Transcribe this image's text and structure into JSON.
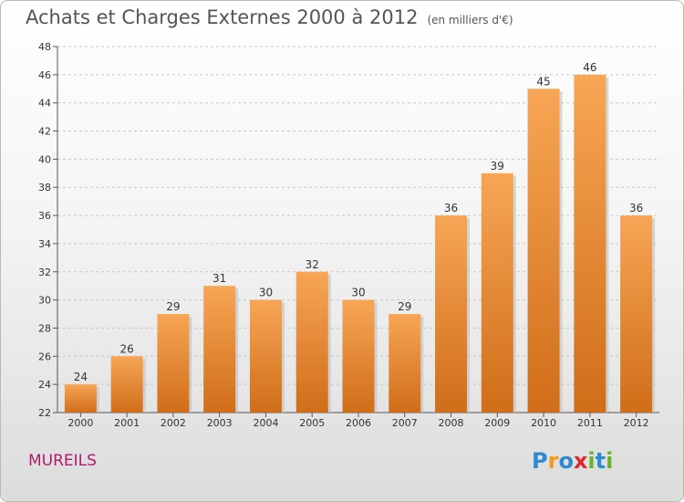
{
  "title": "Achats et Charges Externes 2000 à 2012",
  "unit_label": "(en milliers d'€)",
  "commune": "MUREILS",
  "logo": {
    "letters": [
      "P",
      "r",
      "o",
      "x",
      "i",
      "t",
      "i"
    ],
    "colors": [
      "#2e8bd0",
      "#f29a1a",
      "#2e8bd0",
      "#e0262d",
      "#6ab12f",
      "#2e8bd0",
      "#6ab12f"
    ]
  },
  "colors": {
    "bar_top": "#f7a655",
    "bar_bottom": "#d06d19",
    "grid": "#c8c8c8",
    "title": "#555555",
    "commune": "#b01a6c"
  },
  "chart_data": {
    "type": "bar",
    "categories": [
      "2000",
      "2001",
      "2002",
      "2003",
      "2004",
      "2005",
      "2006",
      "2007",
      "2008",
      "2009",
      "2010",
      "2011",
      "2012"
    ],
    "values": [
      24,
      26,
      29,
      31,
      30,
      32,
      30,
      29,
      36,
      39,
      45,
      46,
      36
    ],
    "ylim": [
      22,
      48
    ],
    "yticks": [
      22,
      24,
      26,
      28,
      30,
      32,
      34,
      36,
      38,
      40,
      42,
      44,
      46,
      48
    ],
    "grid": true,
    "xlabel": "",
    "ylabel": ""
  }
}
